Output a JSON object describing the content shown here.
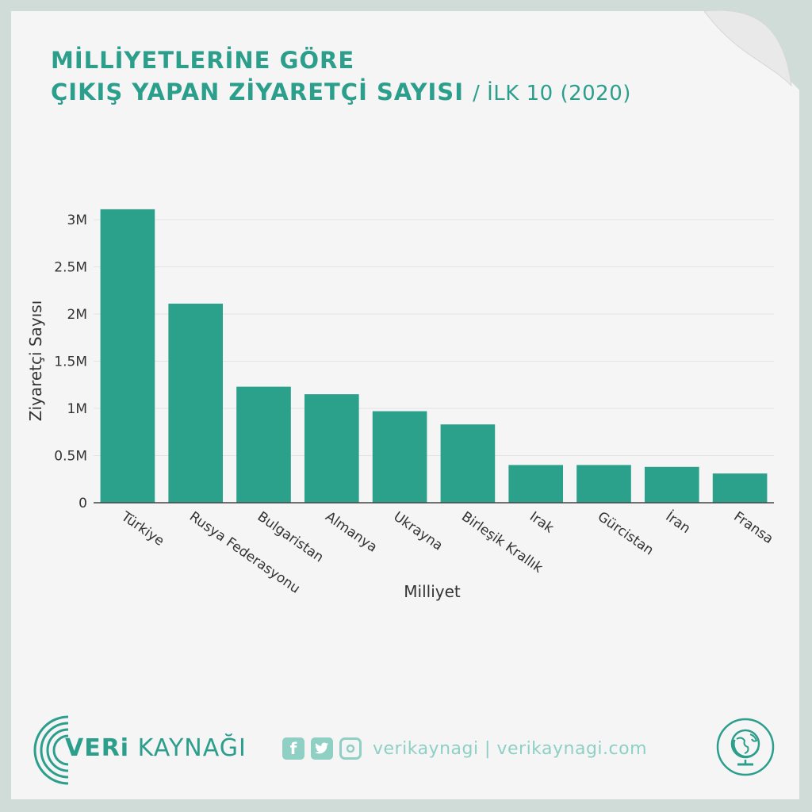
{
  "title": {
    "line1": "MİLLİYETLERİNE GÖRE",
    "line2": "ÇIKIŞ YAPAN ZİYARETÇİ SAYISI",
    "subtitle": "/ İLK 10 (2020)"
  },
  "chart_data": {
    "type": "bar",
    "categories": [
      "Türkiye",
      "Rusya Federasyonu",
      "Bulgaristan",
      "Almanya",
      "Ukrayna",
      "Birleşik Krallık",
      "Irak",
      "Gürcistan",
      "İran",
      "Fransa"
    ],
    "values": [
      3110000,
      2110000,
      1230000,
      1150000,
      970000,
      830000,
      400000,
      400000,
      380000,
      310000
    ],
    "xlabel": "Milliyet",
    "ylabel": "Ziyaretçi Sayısı",
    "ylim": [
      0,
      3200000
    ],
    "yticks": [
      {
        "value": 0,
        "label": "0"
      },
      {
        "value": 500000,
        "label": "0.5M"
      },
      {
        "value": 1000000,
        "label": "1M"
      },
      {
        "value": 1500000,
        "label": "1.5M"
      },
      {
        "value": 2000000,
        "label": "2M"
      },
      {
        "value": 2500000,
        "label": "2.5M"
      },
      {
        "value": 3000000,
        "label": "3M"
      }
    ],
    "grid": true,
    "bar_color": "#2ba18c"
  },
  "footer": {
    "brand_bold": "VERi",
    "brand_rest": " KAYNAĞI",
    "social_text": "verikaynagi | verikaynagi.com",
    "icons": [
      "facebook-icon",
      "twitter-icon",
      "instagram-icon",
      "globe-icon"
    ]
  }
}
